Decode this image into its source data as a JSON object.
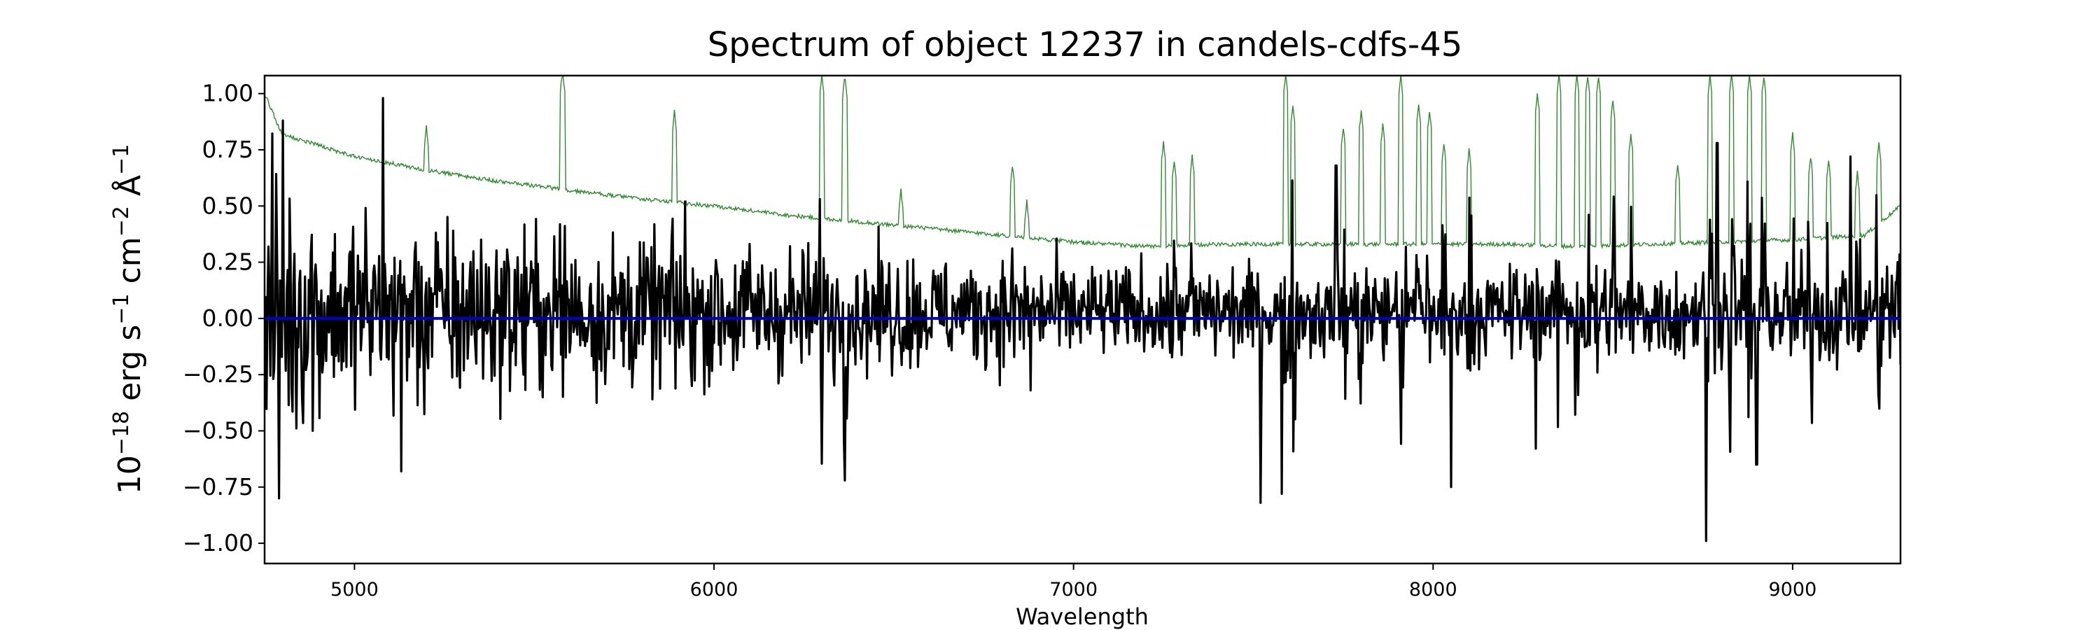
{
  "chart_data": {
    "type": "line",
    "title": "Spectrum of object 12237 in candels-cdfs-45",
    "xlabel": "Wavelength",
    "ylabel_base": "10",
    "ylabel_base_exp": "−18",
    "ylabel_units": [
      {
        "text": " erg s",
        "sup": "−1"
      },
      {
        "text": " cm",
        "sup": "−2"
      },
      {
        "text": " Å",
        "sup": "−1"
      }
    ],
    "xlim": [
      4750,
      9300
    ],
    "ylim": [
      -1.09,
      1.08
    ],
    "xticks": [
      5000,
      6000,
      7000,
      8000,
      9000
    ],
    "yticks": [
      1.0,
      0.75,
      0.5,
      0.25,
      0.0,
      -0.25,
      -0.5,
      -0.75,
      -1.0
    ],
    "xtick_labels": [
      "5000",
      "6000",
      "7000",
      "8000",
      "9000"
    ],
    "ytick_labels": [
      "1.00",
      "0.75",
      "0.50",
      "0.25",
      "0.00",
      "−0.25",
      "−0.50",
      "−0.75",
      "−1.00"
    ],
    "grid": false,
    "series": [
      {
        "role": "error",
        "color": "#2e8b2e",
        "baseline": [
          [
            4750,
            1.0
          ],
          [
            4790,
            0.85
          ],
          [
            4800,
            0.82
          ],
          [
            5000,
            0.72
          ],
          [
            5200,
            0.66
          ],
          [
            5400,
            0.61
          ],
          [
            5600,
            0.57
          ],
          [
            5800,
            0.53
          ],
          [
            6000,
            0.5
          ],
          [
            6200,
            0.46
          ],
          [
            6400,
            0.43
          ],
          [
            6600,
            0.4
          ],
          [
            6800,
            0.37
          ],
          [
            7000,
            0.34
          ],
          [
            7200,
            0.32
          ],
          [
            7400,
            0.33
          ],
          [
            7600,
            0.33
          ],
          [
            7800,
            0.33
          ],
          [
            8000,
            0.33
          ],
          [
            8200,
            0.33
          ],
          [
            8400,
            0.32
          ],
          [
            8600,
            0.33
          ],
          [
            8800,
            0.34
          ],
          [
            9000,
            0.35
          ],
          [
            9200,
            0.37
          ],
          [
            9300,
            0.5
          ]
        ],
        "lines": [
          [
            5200,
            0.85
          ],
          [
            5577,
            1.08
          ],
          [
            5580,
            1.08
          ],
          [
            5890,
            0.92
          ],
          [
            6300,
            1.08
          ],
          [
            6364,
            1.08
          ],
          [
            6520,
            0.57
          ],
          [
            6830,
            0.68
          ],
          [
            6870,
            0.52
          ],
          [
            7250,
            0.78
          ],
          [
            7280,
            0.7
          ],
          [
            7330,
            0.72
          ],
          [
            7590,
            1.08
          ],
          [
            7610,
            0.95
          ],
          [
            7750,
            0.85
          ],
          [
            7800,
            0.92
          ],
          [
            7860,
            0.86
          ],
          [
            7910,
            1.08
          ],
          [
            7960,
            0.95
          ],
          [
            7990,
            0.92
          ],
          [
            8030,
            0.78
          ],
          [
            8100,
            0.75
          ],
          [
            8290,
            1.0
          ],
          [
            8350,
            1.08
          ],
          [
            8400,
            1.08
          ],
          [
            8430,
            1.08
          ],
          [
            8460,
            1.08
          ],
          [
            8500,
            0.97
          ],
          [
            8550,
            0.82
          ],
          [
            8680,
            0.68
          ],
          [
            8770,
            1.08
          ],
          [
            8830,
            1.08
          ],
          [
            8880,
            1.08
          ],
          [
            8920,
            1.08
          ],
          [
            9000,
            0.82
          ],
          [
            9050,
            0.72
          ],
          [
            9100,
            0.7
          ],
          [
            9180,
            0.65
          ],
          [
            9240,
            0.78
          ]
        ]
      },
      {
        "role": "flux",
        "color": "#000000",
        "n": 1700,
        "sigma_scale": 0.18,
        "extremes": [
          [
            4790,
            -0.8
          ],
          [
            4800,
            0.88
          ],
          [
            5080,
            0.98
          ],
          [
            5130,
            -0.68
          ],
          [
            5920,
            0.52
          ],
          [
            6880,
            -0.32
          ],
          [
            7520,
            -0.82
          ],
          [
            7580,
            -0.78
          ],
          [
            7730,
            0.68
          ],
          [
            8050,
            -0.75
          ],
          [
            8760,
            -0.99
          ],
          [
            8790,
            0.78
          ],
          [
            8900,
            -0.65
          ],
          [
            9160,
            0.72
          ]
        ]
      },
      {
        "role": "zero",
        "color": "#0000cc",
        "points": [
          [
            4750,
            0.0
          ],
          [
            9300,
            0.0
          ]
        ]
      }
    ]
  }
}
